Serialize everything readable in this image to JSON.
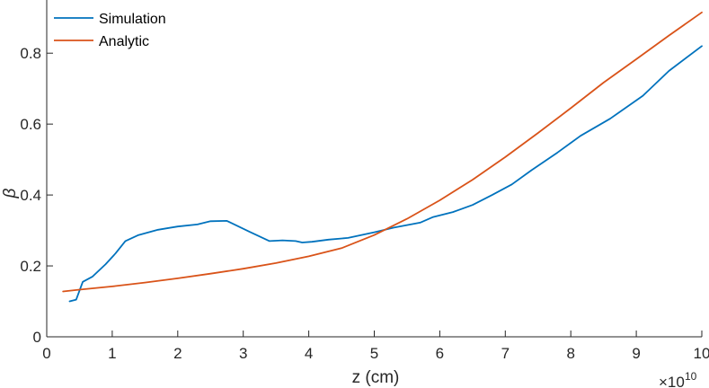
{
  "chart_data": {
    "type": "line",
    "xlabel": "z (cm)",
    "ylabel": "β",
    "x_exponent_label": "×10",
    "x_exponent_power": "10",
    "xlim": [
      0,
      10
    ],
    "ylim": [
      0,
      0.95
    ],
    "xticks": [
      0,
      1,
      2,
      3,
      4,
      5,
      6,
      7,
      8,
      9,
      10
    ],
    "xtick_labels": [
      "0",
      "1",
      "2",
      "3",
      "4",
      "5",
      "6",
      "7",
      "8",
      "9",
      "10"
    ],
    "yticks": [
      0,
      0.2,
      0.4,
      0.6,
      0.8
    ],
    "ytick_labels": [
      "0",
      "0.2",
      "0.4",
      "0.6",
      "0.8"
    ],
    "grid": false,
    "legend_position": "top-left",
    "series": [
      {
        "name": "Simulation",
        "color": "#0072BD",
        "x": [
          0.35,
          0.45,
          0.55,
          0.7,
          0.9,
          1.05,
          1.2,
          1.4,
          1.7,
          2.0,
          2.3,
          2.5,
          2.75,
          3.1,
          3.4,
          3.6,
          3.8,
          3.9,
          4.05,
          4.3,
          4.6,
          5.0,
          5.3,
          5.7,
          5.9,
          6.2,
          6.5,
          6.8,
          7.1,
          7.4,
          7.8,
          8.15,
          8.6,
          9.1,
          9.5,
          10.0
        ],
        "y": [
          0.1,
          0.105,
          0.155,
          0.17,
          0.205,
          0.235,
          0.27,
          0.287,
          0.302,
          0.311,
          0.317,
          0.326,
          0.327,
          0.296,
          0.27,
          0.272,
          0.27,
          0.266,
          0.268,
          0.274,
          0.279,
          0.295,
          0.308,
          0.322,
          0.338,
          0.352,
          0.372,
          0.4,
          0.43,
          0.47,
          0.52,
          0.567,
          0.615,
          0.68,
          0.75,
          0.82
        ]
      },
      {
        "name": "Analytic",
        "color": "#D95319",
        "x": [
          0.25,
          0.5,
          1.0,
          1.5,
          2.0,
          2.5,
          3.0,
          3.5,
          4.0,
          4.5,
          5.0,
          5.5,
          6.0,
          6.5,
          7.0,
          7.5,
          8.0,
          8.5,
          9.0,
          9.5,
          10.0
        ],
        "y": [
          0.128,
          0.133,
          0.142,
          0.153,
          0.165,
          0.178,
          0.192,
          0.208,
          0.227,
          0.25,
          0.287,
          0.333,
          0.385,
          0.443,
          0.507,
          0.575,
          0.645,
          0.717,
          0.783,
          0.85,
          0.915
        ]
      }
    ]
  }
}
